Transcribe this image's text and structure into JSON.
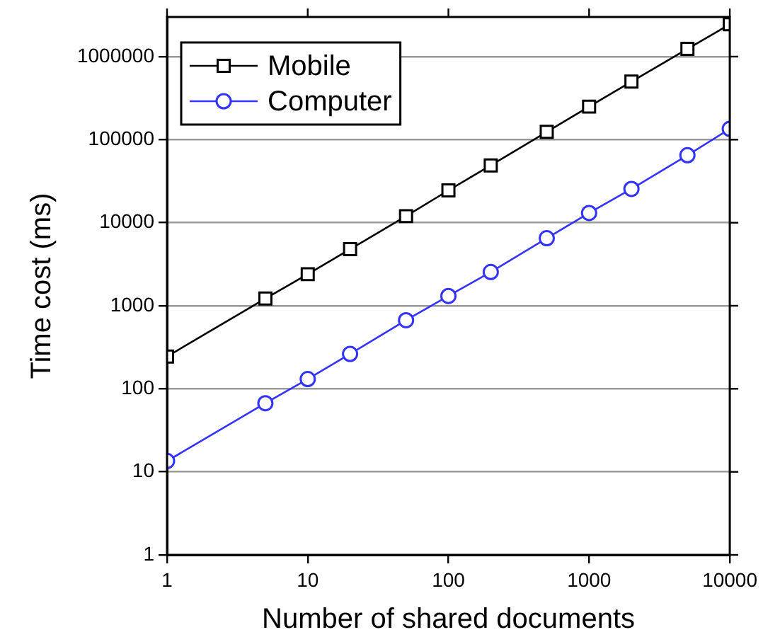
{
  "chart_data": {
    "type": "line",
    "xlabel": "Number of shared documents",
    "ylabel": "Time cost (ms)",
    "log": "xy",
    "x": [
      1,
      5,
      10,
      20,
      50,
      100,
      200,
      500,
      1000,
      2000,
      5000,
      10000
    ],
    "series": [
      {
        "name": "Mobile",
        "color": "#000000",
        "marker": "square",
        "values": [
          245,
          1220,
          2400,
          4800,
          12000,
          24500,
          49000,
          124000,
          250000,
          500000,
          1240000,
          2450000
        ]
      },
      {
        "name": "Computer",
        "color": "#3333ff",
        "marker": "circle",
        "values": [
          13.5,
          67,
          131,
          263,
          670,
          1310,
          2550,
          6500,
          13100,
          25500,
          65000,
          135000
        ]
      }
    ],
    "xlim": [
      1,
      10000
    ],
    "ylim": [
      1,
      3000000
    ],
    "xticks": [
      1,
      10,
      100,
      1000,
      10000
    ],
    "yticks": [
      1,
      10,
      100,
      1000,
      10000,
      100000,
      1000000
    ],
    "grid": "y",
    "legend": "top left",
    "line_style": "solid"
  }
}
